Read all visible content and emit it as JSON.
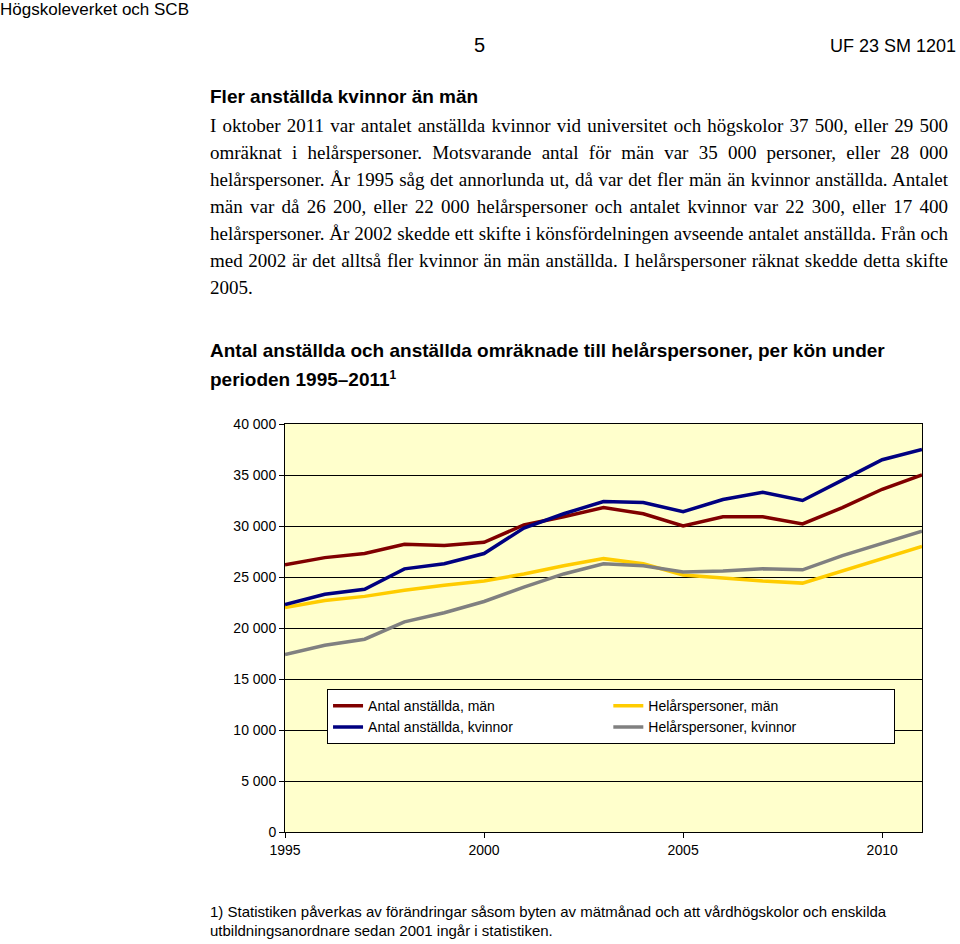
{
  "header": {
    "left": "Högskoleverket och SCB",
    "page": "5",
    "right": "UF 23 SM 1201"
  },
  "section": {
    "heading": "Fler anställda kvinnor än män",
    "text": "I oktober 2011 var antalet anställda kvinnor vid universitet och högskolor 37 500, eller 29 500 omräknat i helårspersoner. Motsvarande antal för män var 35 000 personer, eller 28 000 helårspersoner. År 1995 såg det annorlunda ut, då var det fler män än kvinnor anställda. Antalet män var då 26 200, eller 22 000 helårspersoner och antalet kvinnor var 22 300, eller 17 400 helårspersoner. År 2002 skedde ett skifte i könsfördelningen avseende antalet anställda. Från och med 2002 är det alltså fler kvinnor än män anställda. I helårspersoner räknat skedde detta skifte 2005."
  },
  "chart_data": {
    "type": "line",
    "title": "Antal anställda och anställda omräknade till helårspersoner, per kön under perioden 1995–2011",
    "title_note": "1",
    "x": [
      1995,
      1996,
      1997,
      1998,
      1999,
      2000,
      2001,
      2002,
      2003,
      2004,
      2005,
      2006,
      2007,
      2008,
      2009,
      2010,
      2011
    ],
    "series": [
      {
        "name": "Antal anställda, män",
        "color": "#800000",
        "values": [
          26200,
          26900,
          27300,
          28200,
          28100,
          28400,
          30100,
          30900,
          31800,
          31200,
          30000,
          30900,
          30900,
          30200,
          31800,
          33600,
          35000
        ]
      },
      {
        "name": "Helårspersoner, män",
        "color": "#ffcc00",
        "values": [
          22000,
          22700,
          23100,
          23700,
          24200,
          24600,
          25300,
          26100,
          26800,
          26300,
          25200,
          24900,
          24600,
          24400,
          25600,
          26800,
          28000
        ]
      },
      {
        "name": "Antal anställda, kvinnor",
        "color": "#000080",
        "values": [
          22300,
          23300,
          23800,
          25800,
          26300,
          27300,
          29800,
          31200,
          32400,
          32300,
          31400,
          32600,
          33300,
          32500,
          34500,
          36500,
          37500
        ]
      },
      {
        "name": "Helårspersoner, kvinnor",
        "color": "#808080",
        "values": [
          17400,
          18300,
          18900,
          20600,
          21500,
          22600,
          24000,
          25300,
          26300,
          26100,
          25500,
          25600,
          25800,
          25700,
          27100,
          28300,
          29500
        ]
      }
    ],
    "xlim": [
      1995,
      2011
    ],
    "xticks": [
      1995,
      2000,
      2005,
      2010
    ],
    "ylim": [
      0,
      40000
    ],
    "yticks": [
      0,
      {
        "value": 5000,
        "label": "5 000"
      },
      {
        "value": 10000,
        "label": "10 000"
      },
      {
        "value": 15000,
        "label": "15 000"
      },
      {
        "value": 20000,
        "label": "20 000"
      },
      {
        "value": 25000,
        "label": "25 000"
      },
      {
        "value": 30000,
        "label": "30 000"
      },
      {
        "value": 35000,
        "label": "35 000"
      },
      {
        "value": 40000,
        "label": "40 000"
      }
    ],
    "grid": true,
    "legend": "bottom"
  },
  "footnote": "1) Statistiken påverkas av förändringar såsom byten av mätmånad och att vårdhögskolor och enskilda utbildningsanordnare sedan 2001 ingår i statistiken."
}
